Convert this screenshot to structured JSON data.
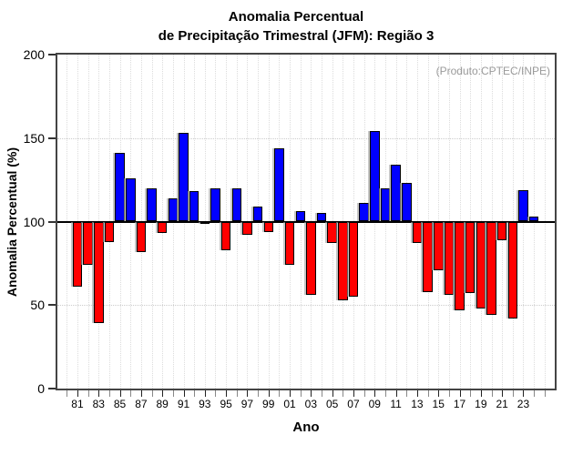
{
  "title": {
    "line1": "Anomalia Percentual",
    "line2": "de Precipitação Trimestral (JFM): Região 3"
  },
  "annotation": "(Produto:CPTEC/INPE)",
  "y_axis": {
    "label": "Anomalia Percentual (%)",
    "ticks": [
      0,
      50,
      100,
      150,
      200
    ],
    "tick_labels": [
      "0",
      "50",
      "100",
      "150",
      "200"
    ],
    "gridlines": [
      50,
      150
    ],
    "range": [
      0,
      200
    ]
  },
  "x_axis": {
    "label": "Ano",
    "tick_year_start": 1980,
    "tick_year_end": 2025,
    "labeled_years": [
      1981,
      1983,
      1985,
      1987,
      1989,
      1991,
      1993,
      1995,
      1997,
      1999,
      2001,
      2003,
      2005,
      2007,
      2009,
      2011,
      2013,
      2015,
      2017,
      2019,
      2021,
      2023
    ],
    "labels": [
      "81",
      "83",
      "85",
      "87",
      "89",
      "91",
      "93",
      "95",
      "97",
      "99",
      "01",
      "03",
      "05",
      "07",
      "09",
      "11",
      "13",
      "15",
      "17",
      "19",
      "21",
      "23"
    ]
  },
  "chart_data": {
    "type": "bar",
    "title": "Anomalia Percentual de Precipitação Trimestral (JFM): Região 3",
    "xlabel": "Ano",
    "ylabel": "Anomalia Percentual (%)",
    "ylim": [
      0,
      200
    ],
    "baseline": 100,
    "grid": "dotted",
    "legend": "none",
    "years": [
      1981,
      1982,
      1983,
      1984,
      1985,
      1986,
      1987,
      1988,
      1989,
      1990,
      1991,
      1992,
      1993,
      1994,
      1995,
      1996,
      1997,
      1998,
      1999,
      2000,
      2001,
      2002,
      2003,
      2004,
      2005,
      2006,
      2007,
      2008,
      2009,
      2010,
      2011,
      2012,
      2013,
      2014,
      2015,
      2016,
      2017,
      2018,
      2019,
      2020,
      2021,
      2022,
      2023,
      2024
    ],
    "values": [
      61,
      74,
      39,
      88,
      141,
      126,
      82,
      120,
      93,
      114,
      153,
      118,
      99,
      120,
      83,
      120,
      92,
      109,
      94,
      144,
      74,
      106,
      56,
      105,
      87,
      53,
      55,
      111,
      154,
      120,
      134,
      123,
      87,
      58,
      71,
      56,
      47,
      57,
      48,
      44,
      89,
      42,
      119,
      103
    ],
    "color_above_baseline": "#0000ff",
    "color_below_baseline": "#ff0000",
    "bar_border_color": "#000000"
  }
}
